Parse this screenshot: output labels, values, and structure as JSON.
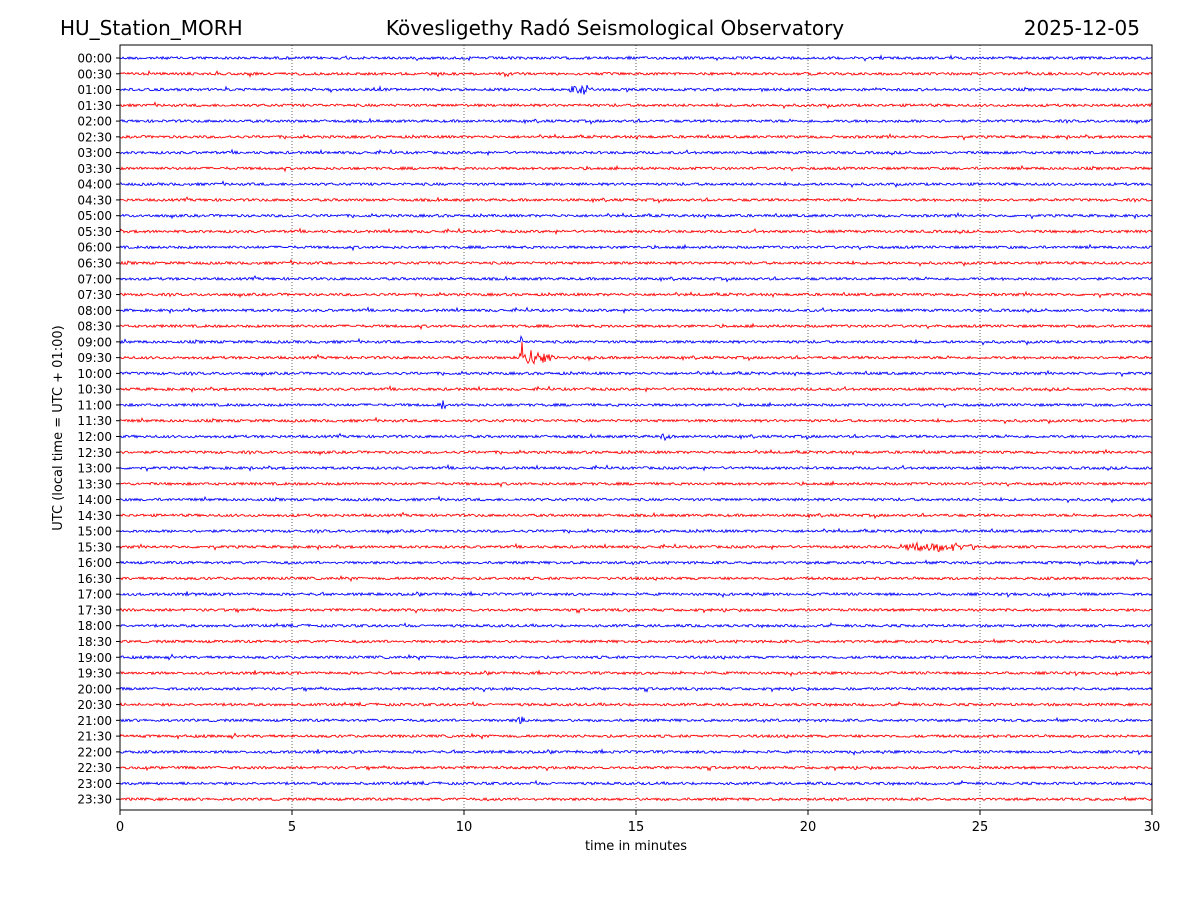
{
  "header": {
    "station": "HU_Station_MORH",
    "observatory": "Kövesligethy Radó Seismological Observatory",
    "date": "2025-12-05"
  },
  "chart_data": {
    "type": "line",
    "title": "Kövesligethy Radó Seismological Observatory",
    "xlabel": "time in minutes",
    "ylabel": "UTC (local time = UTC + 01:00)",
    "xlim": [
      0,
      30
    ],
    "x_ticks": [
      0,
      5,
      10,
      15,
      20,
      25,
      30
    ],
    "grid": "vertical dotted at x ticks",
    "colors": {
      "even_rows": "#0000ff",
      "odd_rows": "#ff0000"
    },
    "row_labels": [
      "00:00",
      "00:30",
      "01:00",
      "01:30",
      "02:00",
      "02:30",
      "03:00",
      "03:30",
      "04:00",
      "04:30",
      "05:00",
      "05:30",
      "06:00",
      "06:30",
      "07:00",
      "07:30",
      "08:00",
      "08:30",
      "09:00",
      "09:30",
      "10:00",
      "10:30",
      "11:00",
      "11:30",
      "12:00",
      "12:30",
      "13:00",
      "13:30",
      "14:00",
      "14:30",
      "15:00",
      "15:30",
      "16:00",
      "16:30",
      "17:00",
      "17:30",
      "18:00",
      "18:30",
      "19:00",
      "19:30",
      "20:00",
      "20:30",
      "21:00",
      "21:30",
      "22:00",
      "22:30",
      "23:00",
      "23:30"
    ],
    "events": [
      {
        "row": "09:30",
        "start_min": 11.6,
        "end_min": 14.0,
        "amplitude": "large"
      },
      {
        "row": "09:00",
        "start_min": 11.6,
        "end_min": 11.9,
        "amplitude": "large"
      },
      {
        "row": "15:30",
        "start_min": 22.2,
        "end_min": 25.3,
        "amplitude": "medium"
      },
      {
        "row": "01:00",
        "start_min": 13.0,
        "end_min": 13.8,
        "amplitude": "small"
      },
      {
        "row": "11:00",
        "start_min": 9.2,
        "end_min": 9.5,
        "amplitude": "small"
      },
      {
        "row": "12:00",
        "start_min": 15.7,
        "end_min": 16.0,
        "amplitude": "small"
      },
      {
        "row": "21:00",
        "start_min": 11.5,
        "end_min": 11.8,
        "amplitude": "small"
      }
    ]
  }
}
